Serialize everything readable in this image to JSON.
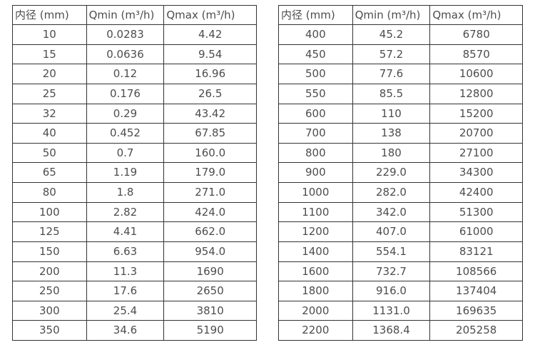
{
  "page": {
    "background_color": "#ffffff",
    "text_color": "#4d4d4d",
    "border_color": "#333333"
  },
  "chart_data": [
    {
      "type": "table",
      "title": "",
      "headers": [
        "内径 (mm)",
        "Qmin (m³/h)",
        "Qmax (m³/h)"
      ],
      "rows": [
        [
          "10",
          "0.0283",
          "4.42"
        ],
        [
          "15",
          "0.0636",
          "9.54"
        ],
        [
          "20",
          "0.12",
          "16.96"
        ],
        [
          "25",
          "0.176",
          "26.5"
        ],
        [
          "32",
          "0.29",
          "43.42"
        ],
        [
          "40",
          "0.452",
          "67.85"
        ],
        [
          "50",
          "0.7",
          "160.0"
        ],
        [
          "65",
          "1.19",
          "179.0"
        ],
        [
          "80",
          "1.8",
          "271.0"
        ],
        [
          "100",
          "2.82",
          "424.0"
        ],
        [
          "125",
          "4.41",
          "662.0"
        ],
        [
          "150",
          "6.63",
          "954.0"
        ],
        [
          "200",
          "11.3",
          "1690"
        ],
        [
          "250",
          "17.6",
          "2650"
        ],
        [
          "300",
          "25.4",
          "3810"
        ],
        [
          "350",
          "34.6",
          "5190"
        ]
      ]
    },
    {
      "type": "table",
      "title": "",
      "headers": [
        "内径 (mm)",
        "Qmin (m³/h)",
        "Qmax (m³/h)"
      ],
      "rows": [
        [
          "400",
          "45.2",
          "6780"
        ],
        [
          "450",
          "57.2",
          "8570"
        ],
        [
          "500",
          "77.6",
          "10600"
        ],
        [
          "550",
          "85.5",
          "12800"
        ],
        [
          "600",
          "110",
          "15200"
        ],
        [
          "700",
          "138",
          "20700"
        ],
        [
          "800",
          "180",
          "27100"
        ],
        [
          "900",
          "229.0",
          "34300"
        ],
        [
          "1000",
          "282.0",
          "42400"
        ],
        [
          "1100",
          "342.0",
          "51300"
        ],
        [
          "1200",
          "407.0",
          "61000"
        ],
        [
          "1400",
          "554.1",
          "83121"
        ],
        [
          "1600",
          "732.7",
          "108566"
        ],
        [
          "1800",
          "916.0",
          "137404"
        ],
        [
          "2000",
          "1131.0",
          "169635"
        ],
        [
          "2200",
          "1368.4",
          "205258"
        ]
      ]
    }
  ]
}
